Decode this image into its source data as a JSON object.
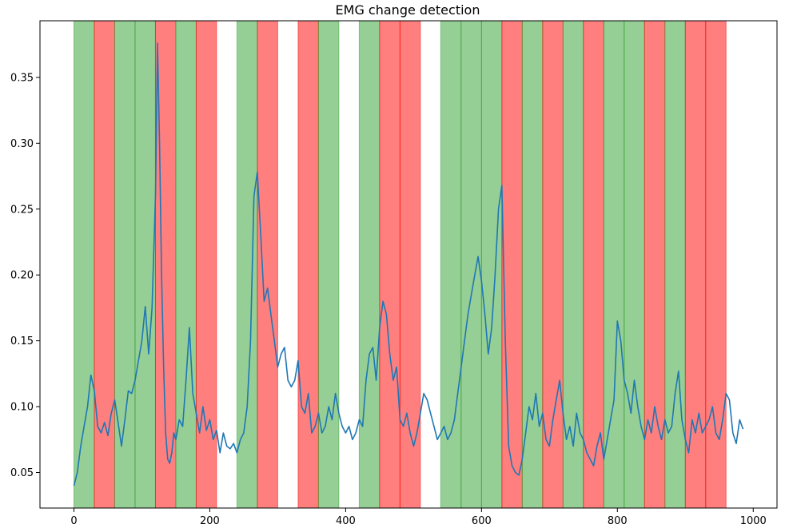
{
  "chart_data": {
    "type": "line",
    "title": "EMG change detection",
    "xlabel": "",
    "ylabel": "",
    "xlim": [
      -50,
      1035
    ],
    "ylim": [
      0.023,
      0.393
    ],
    "x_ticks": [
      0,
      200,
      400,
      600,
      800,
      1000
    ],
    "y_ticks": [
      0.05,
      0.1,
      0.15,
      0.2,
      0.25,
      0.3,
      0.35
    ],
    "grid": false,
    "colors": {
      "line": "#1f77b4",
      "active": "#2ca02c",
      "rest": "#ff0000"
    },
    "bands": [
      {
        "start": 0,
        "end": 30,
        "kind": "active"
      },
      {
        "start": 30,
        "end": 60,
        "kind": "rest"
      },
      {
        "start": 60,
        "end": 90,
        "kind": "active"
      },
      {
        "start": 90,
        "end": 120,
        "kind": "active"
      },
      {
        "start": 120,
        "end": 150,
        "kind": "rest"
      },
      {
        "start": 150,
        "end": 180,
        "kind": "active"
      },
      {
        "start": 180,
        "end": 210,
        "kind": "rest"
      },
      {
        "start": 240,
        "end": 270,
        "kind": "active"
      },
      {
        "start": 270,
        "end": 300,
        "kind": "rest"
      },
      {
        "start": 330,
        "end": 360,
        "kind": "rest"
      },
      {
        "start": 360,
        "end": 390,
        "kind": "active"
      },
      {
        "start": 420,
        "end": 450,
        "kind": "active"
      },
      {
        "start": 450,
        "end": 480,
        "kind": "rest"
      },
      {
        "start": 480,
        "end": 510,
        "kind": "rest"
      },
      {
        "start": 540,
        "end": 570,
        "kind": "active"
      },
      {
        "start": 570,
        "end": 600,
        "kind": "active"
      },
      {
        "start": 600,
        "end": 630,
        "kind": "active"
      },
      {
        "start": 630,
        "end": 660,
        "kind": "rest"
      },
      {
        "start": 660,
        "end": 690,
        "kind": "active"
      },
      {
        "start": 690,
        "end": 720,
        "kind": "rest"
      },
      {
        "start": 720,
        "end": 750,
        "kind": "active"
      },
      {
        "start": 750,
        "end": 780,
        "kind": "rest"
      },
      {
        "start": 780,
        "end": 810,
        "kind": "active"
      },
      {
        "start": 810,
        "end": 840,
        "kind": "active"
      },
      {
        "start": 840,
        "end": 870,
        "kind": "rest"
      },
      {
        "start": 870,
        "end": 900,
        "kind": "active"
      },
      {
        "start": 900,
        "end": 930,
        "kind": "rest"
      },
      {
        "start": 930,
        "end": 960,
        "kind": "rest"
      }
    ],
    "series": [
      {
        "x": [
          0,
          5,
          10,
          15,
          20,
          25,
          30,
          35,
          40,
          45,
          50,
          55,
          60,
          65,
          70,
          75,
          80,
          85,
          90,
          95,
          100,
          105,
          110,
          115,
          120,
          123,
          126,
          129,
          132,
          135,
          138,
          141,
          144,
          147,
          150,
          155,
          160,
          165,
          170,
          175,
          180,
          185,
          190,
          195,
          200,
          205,
          210,
          215,
          220,
          225,
          230,
          235,
          240,
          245,
          250,
          255,
          260,
          265,
          270,
          275,
          280,
          285,
          290,
          295,
          300,
          305,
          310,
          315,
          320,
          325,
          330,
          335,
          340,
          345,
          350,
          355,
          360,
          365,
          370,
          375,
          380,
          385,
          390,
          395,
          400,
          405,
          410,
          415,
          420,
          425,
          430,
          435,
          440,
          445,
          450,
          455,
          460,
          465,
          470,
          475,
          480,
          485,
          490,
          495,
          500,
          505,
          510,
          515,
          520,
          525,
          530,
          535,
          540,
          545,
          550,
          555,
          560,
          565,
          570,
          575,
          580,
          585,
          590,
          595,
          600,
          605,
          610,
          615,
          620,
          625,
          630,
          635,
          640,
          645,
          650,
          655,
          660,
          665,
          670,
          675,
          680,
          685,
          690,
          695,
          700,
          705,
          710,
          715,
          720,
          725,
          730,
          735,
          740,
          745,
          750,
          755,
          760,
          765,
          770,
          775,
          780,
          785,
          790,
          795,
          800,
          805,
          810,
          815,
          820,
          825,
          830,
          835,
          840,
          845,
          850,
          855,
          860,
          865,
          870,
          875,
          880,
          885,
          890,
          895,
          900,
          905,
          910,
          915,
          920,
          925,
          930,
          935,
          940,
          945,
          950,
          955,
          960,
          965,
          970,
          975,
          980,
          985
        ],
        "y": [
          0.04,
          0.05,
          0.07,
          0.085,
          0.1,
          0.124,
          0.112,
          0.085,
          0.08,
          0.088,
          0.078,
          0.095,
          0.105,
          0.088,
          0.07,
          0.09,
          0.112,
          0.11,
          0.12,
          0.135,
          0.15,
          0.176,
          0.14,
          0.175,
          0.26,
          0.376,
          0.3,
          0.2,
          0.13,
          0.08,
          0.06,
          0.057,
          0.065,
          0.08,
          0.075,
          0.09,
          0.085,
          0.12,
          0.16,
          0.11,
          0.095,
          0.08,
          0.1,
          0.082,
          0.09,
          0.075,
          0.082,
          0.065,
          0.08,
          0.07,
          0.068,
          0.072,
          0.065,
          0.075,
          0.08,
          0.1,
          0.15,
          0.26,
          0.278,
          0.23,
          0.18,
          0.19,
          0.17,
          0.15,
          0.13,
          0.14,
          0.145,
          0.12,
          0.115,
          0.12,
          0.135,
          0.1,
          0.095,
          0.11,
          0.08,
          0.085,
          0.095,
          0.08,
          0.085,
          0.1,
          0.09,
          0.11,
          0.095,
          0.085,
          0.08,
          0.085,
          0.075,
          0.08,
          0.09,
          0.085,
          0.12,
          0.14,
          0.145,
          0.12,
          0.16,
          0.18,
          0.17,
          0.14,
          0.12,
          0.13,
          0.09,
          0.085,
          0.095,
          0.08,
          0.07,
          0.08,
          0.095,
          0.11,
          0.105,
          0.095,
          0.085,
          0.075,
          0.08,
          0.085,
          0.075,
          0.08,
          0.09,
          0.11,
          0.13,
          0.15,
          0.17,
          0.185,
          0.2,
          0.214,
          0.195,
          0.17,
          0.14,
          0.16,
          0.2,
          0.25,
          0.268,
          0.15,
          0.07,
          0.055,
          0.05,
          0.048,
          0.06,
          0.08,
          0.1,
          0.09,
          0.11,
          0.085,
          0.095,
          0.075,
          0.07,
          0.09,
          0.105,
          0.12,
          0.095,
          0.075,
          0.085,
          0.07,
          0.095,
          0.08,
          0.075,
          0.065,
          0.06,
          0.055,
          0.07,
          0.08,
          0.06,
          0.075,
          0.09,
          0.105,
          0.165,
          0.15,
          0.12,
          0.11,
          0.095,
          0.12,
          0.1,
          0.085,
          0.075,
          0.09,
          0.08,
          0.1,
          0.085,
          0.075,
          0.09,
          0.08,
          0.085,
          0.11,
          0.127,
          0.09,
          0.075,
          0.065,
          0.09,
          0.08,
          0.095,
          0.08,
          0.085,
          0.09,
          0.1,
          0.08,
          0.075,
          0.09,
          0.11,
          0.105,
          0.08,
          0.072,
          0.09,
          0.083
        ]
      }
    ]
  }
}
